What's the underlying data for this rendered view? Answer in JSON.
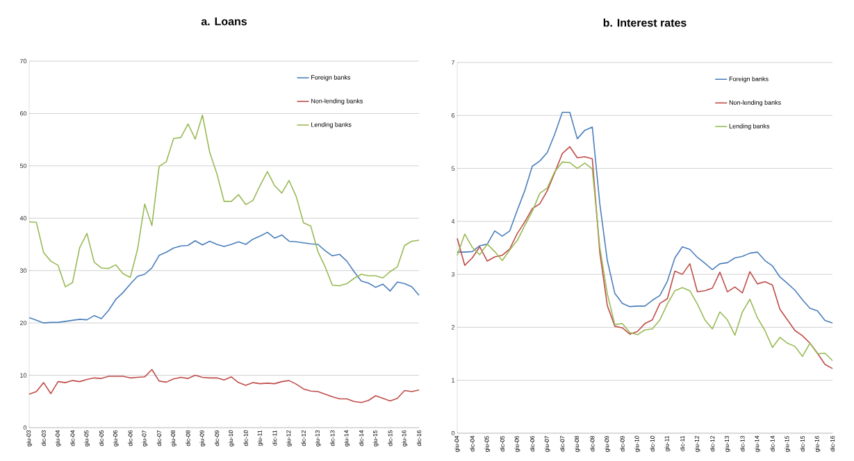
{
  "chart_data": [
    {
      "type": "line",
      "title": "a. Loans",
      "grid": "y",
      "legend": "top right",
      "marker": "none",
      "ylim": [
        0,
        70
      ],
      "yticks": [
        0,
        10,
        20,
        30,
        40,
        50,
        60,
        70
      ],
      "categories": [
        "giu-03",
        null,
        "dic-03",
        null,
        "giu-04",
        null,
        "dic-04",
        null,
        "giu-05",
        null,
        "dic-05",
        null,
        "giu-06",
        null,
        "dic-06",
        null,
        "giu-07",
        null,
        "dic-07",
        null,
        "giu-08",
        null,
        "dic-08",
        null,
        "giu-09",
        null,
        "dic-09",
        null,
        "giu-10",
        null,
        "dic-10",
        null,
        "giu-11",
        null,
        "dic-11",
        null,
        "giu-12",
        null,
        "dic-12",
        null,
        "giu-13",
        null,
        "dic-13",
        null,
        "giu-14",
        null,
        "dic-14",
        null,
        "giu-15",
        null,
        "dic-15",
        null,
        "giu-16",
        null,
        "dic-16"
      ],
      "series": [
        {
          "name": "Foreign banks",
          "color": "#4a7ebb",
          "values": [
            21.0,
            20.5,
            20.0,
            20.1,
            20.1,
            20.3,
            20.5,
            20.7,
            20.6,
            21.4,
            20.8,
            22.4,
            24.5,
            25.8,
            27.4,
            28.9,
            29.3,
            30.5,
            32.9,
            33.5,
            34.3,
            34.7,
            34.8,
            35.7,
            34.9,
            35.6,
            35.0,
            34.6,
            35.0,
            35.5,
            35.0,
            36.0,
            36.6,
            37.3,
            36.2,
            36.8,
            35.6,
            35.5,
            35.3,
            35.1,
            35.0,
            33.8,
            32.8,
            33.1,
            31.8,
            29.8,
            28.0,
            27.6,
            26.8,
            27.4,
            26.1,
            27.8,
            27.5,
            26.9,
            25.3
          ]
        },
        {
          "name": "Non-lending banks",
          "color": "#be4b48",
          "values": [
            6.4,
            6.9,
            8.6,
            6.5,
            8.8,
            8.6,
            9.0,
            8.8,
            9.2,
            9.5,
            9.4,
            9.8,
            9.8,
            9.8,
            9.5,
            9.6,
            9.7,
            11.1,
            8.9,
            8.7,
            9.3,
            9.6,
            9.4,
            10.0,
            9.6,
            9.5,
            9.5,
            9.1,
            9.7,
            8.6,
            8.1,
            8.6,
            8.4,
            8.5,
            8.4,
            8.8,
            9.0,
            8.3,
            7.4,
            7.0,
            6.9,
            6.4,
            5.9,
            5.5,
            5.5,
            5.0,
            4.8,
            5.2,
            6.1,
            5.6,
            5.1,
            5.6,
            7.1,
            6.9,
            7.2
          ]
        },
        {
          "name": "Lending banks",
          "color": "#98b954",
          "values": [
            39.3,
            39.2,
            33.4,
            31.8,
            31.0,
            26.9,
            27.7,
            34.4,
            37.1,
            31.6,
            30.5,
            30.4,
            31.1,
            29.4,
            28.7,
            34.0,
            42.7,
            38.6,
            49.9,
            50.8,
            55.2,
            55.4,
            58.0,
            55.1,
            59.7,
            52.6,
            48.5,
            43.2,
            43.2,
            44.5,
            42.6,
            43.4,
            46.3,
            48.9,
            46.2,
            44.8,
            47.2,
            44.1,
            39.1,
            38.5,
            33.6,
            30.7,
            27.2,
            27.1,
            27.5,
            28.5,
            29.3,
            29.0,
            29.0,
            28.6,
            29.8,
            30.7,
            34.8,
            35.6,
            35.8
          ]
        }
      ]
    },
    {
      "type": "line",
      "title": "b. Interest rates",
      "grid": "y",
      "legend": "top right",
      "marker": "none",
      "ylim": [
        0,
        7
      ],
      "yticks": [
        0,
        1,
        2,
        3,
        4,
        5,
        6,
        7
      ],
      "categories": [
        "giu-04",
        null,
        "dic-04",
        null,
        "giu-05",
        null,
        "dic-05",
        null,
        "giu-06",
        null,
        "dic-06",
        null,
        "giu-07",
        null,
        "dic-07",
        null,
        "giu-08",
        null,
        "dic-08",
        null,
        "giu-09",
        null,
        "dic-09",
        null,
        "giu-10",
        null,
        "dic-10",
        null,
        "giu-11",
        null,
        "dic-11",
        null,
        "giu-12",
        null,
        "dic-12",
        null,
        "giu-13",
        null,
        "dic-13",
        null,
        "giu-14",
        null,
        "dic-14",
        null,
        "giu-15",
        null,
        "dic-15",
        null,
        "giu-16",
        null,
        "dic-16"
      ],
      "series": [
        {
          "name": "Foreign banks",
          "color": "#4a7ebb",
          "values": [
            3.42,
            3.42,
            3.43,
            3.54,
            3.57,
            3.82,
            3.72,
            3.82,
            4.21,
            4.58,
            5.04,
            5.14,
            5.3,
            5.65,
            6.06,
            6.06,
            5.56,
            5.72,
            5.78,
            4.33,
            3.26,
            2.64,
            2.45,
            2.39,
            2.4,
            2.4,
            2.51,
            2.6,
            2.87,
            3.31,
            3.52,
            3.47,
            3.32,
            3.21,
            3.09,
            3.2,
            3.22,
            3.31,
            3.34,
            3.4,
            3.42,
            3.26,
            3.16,
            2.95,
            2.83,
            2.7,
            2.52,
            2.36,
            2.31,
            2.13,
            2.08
          ]
        },
        {
          "name": "Non-lending banks",
          "color": "#be4b48",
          "values": [
            3.68,
            3.17,
            3.31,
            3.52,
            3.25,
            3.33,
            3.36,
            3.48,
            3.77,
            3.99,
            4.24,
            4.33,
            4.58,
            4.92,
            5.28,
            5.41,
            5.2,
            5.22,
            5.18,
            3.41,
            2.41,
            2.02,
            1.99,
            1.87,
            1.92,
            2.07,
            2.14,
            2.45,
            2.54,
            3.06,
            3.0,
            3.2,
            2.67,
            2.69,
            2.74,
            3.04,
            2.67,
            2.76,
            2.65,
            3.05,
            2.82,
            2.86,
            2.8,
            2.34,
            2.14,
            1.94,
            1.84,
            1.7,
            1.51,
            1.3,
            1.22
          ]
        },
        {
          "name": "Lending banks",
          "color": "#98b954",
          "values": [
            3.36,
            3.76,
            3.51,
            3.37,
            3.57,
            3.43,
            3.26,
            3.46,
            3.64,
            3.92,
            4.19,
            4.53,
            4.63,
            4.94,
            5.12,
            5.11,
            5.0,
            5.1,
            4.99,
            3.51,
            2.63,
            2.05,
            2.07,
            1.9,
            1.86,
            1.95,
            1.97,
            2.14,
            2.44,
            2.69,
            2.75,
            2.69,
            2.44,
            2.14,
            1.97,
            2.29,
            2.14,
            1.85,
            2.29,
            2.53,
            2.18,
            1.94,
            1.62,
            1.81,
            1.7,
            1.64,
            1.45,
            1.7,
            1.5,
            1.51,
            1.37
          ]
        }
      ]
    }
  ]
}
